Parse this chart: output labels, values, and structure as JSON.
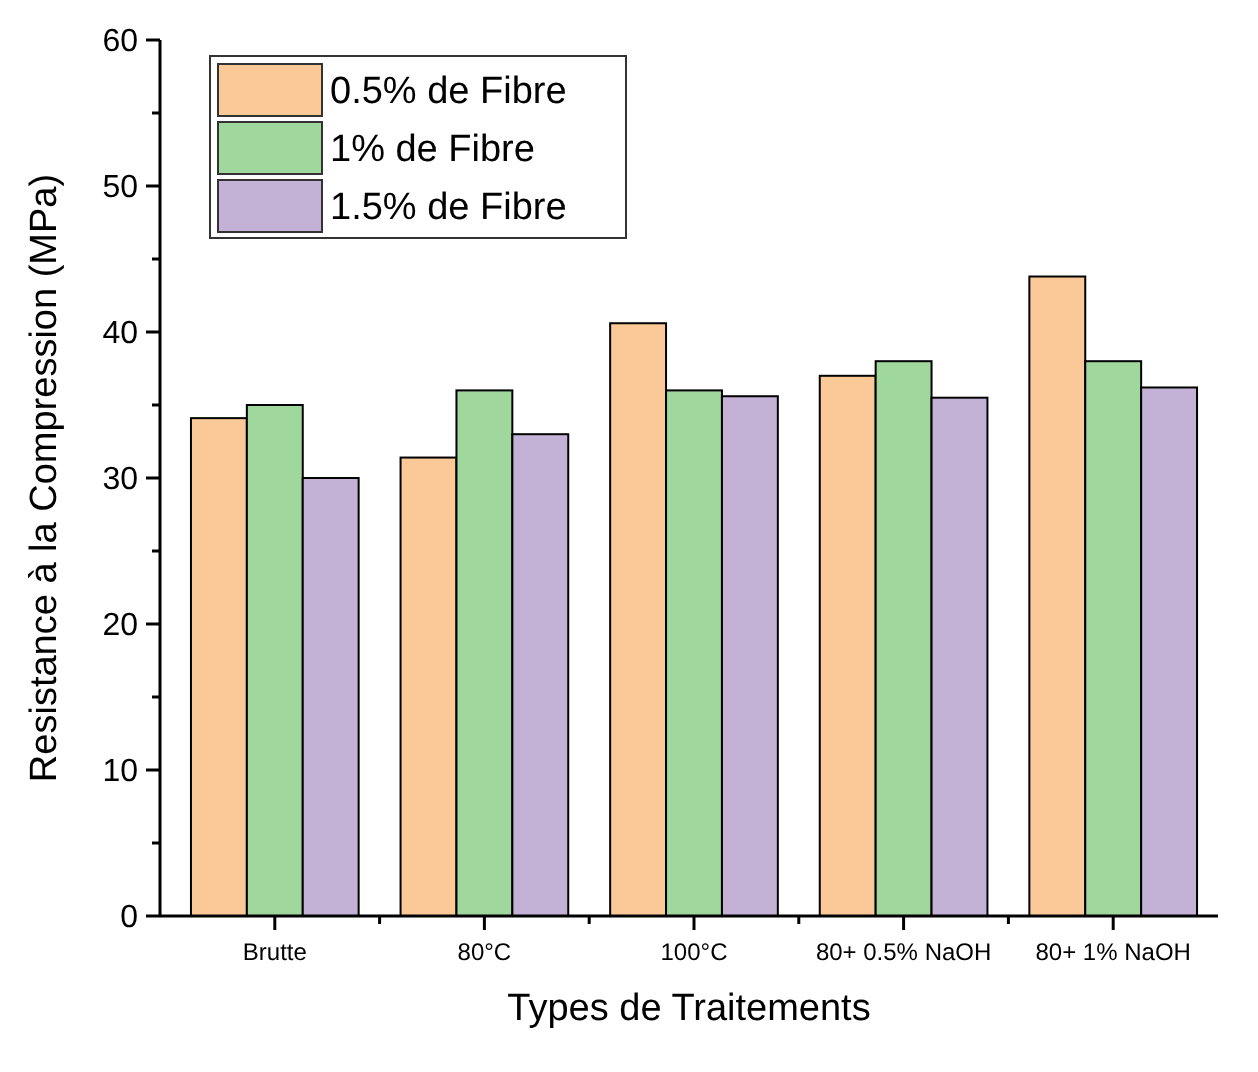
{
  "chart_data": {
    "type": "bar",
    "xlabel": "Types de Traitements",
    "ylabel": "Resistance à la Compression (MPa)",
    "categories": [
      "Brutte",
      "80°C",
      "100°C",
      "80+ 0.5% NaOH",
      "80+ 1% NaOH"
    ],
    "series": [
      {
        "name": "0.5% de Fibre",
        "color": "#fbc898",
        "values": [
          34.1,
          31.4,
          40.6,
          37.0,
          43.8
        ]
      },
      {
        "name": "1% de Fibre",
        "color": "#9fd79d",
        "values": [
          35.0,
          36.0,
          36.0,
          38.0,
          38.0
        ]
      },
      {
        "name": "1.5% de Fibre",
        "color": "#c3b1d6",
        "values": [
          30.0,
          33.0,
          35.6,
          35.5,
          36.2
        ]
      }
    ],
    "ylim": [
      0,
      60
    ],
    "yticks": [
      0,
      10,
      20,
      30,
      40,
      50,
      60
    ],
    "grid": false,
    "legend": "top left"
  }
}
